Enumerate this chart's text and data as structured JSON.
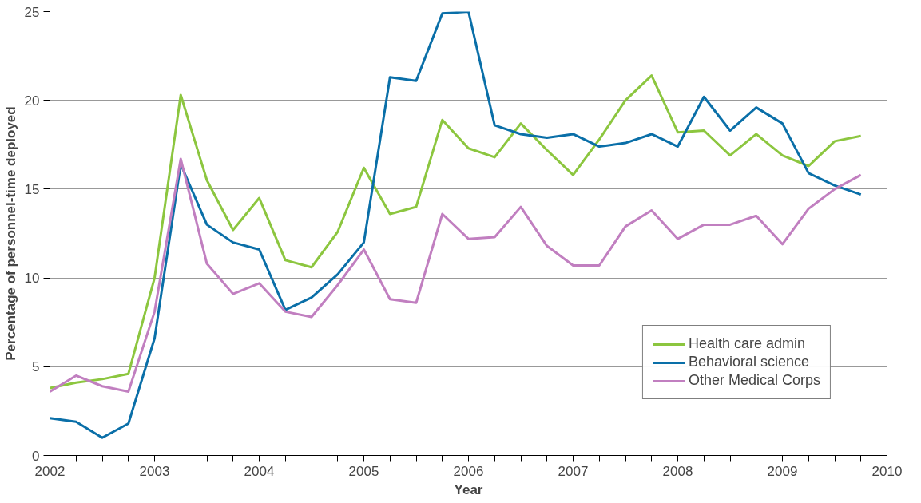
{
  "chart_data": {
    "type": "line",
    "xlabel": "Year",
    "ylabel": "Percentage of personnel-time deployed",
    "x": [
      2002,
      2002.25,
      2002.5,
      2002.75,
      2003,
      2003.25,
      2003.5,
      2003.75,
      2004,
      2004.25,
      2004.5,
      2004.75,
      2005,
      2005.25,
      2005.5,
      2005.75,
      2006,
      2006.25,
      2006.5,
      2006.75,
      2007,
      2007.25,
      2007.5,
      2007.75,
      2008,
      2008.25,
      2008.5,
      2008.75,
      2009,
      2009.25,
      2009.5,
      2009.75
    ],
    "series": [
      {
        "name": "Health care admin",
        "color": "#8cc63f",
        "values": [
          3.8,
          4.1,
          4.3,
          4.6,
          10.0,
          20.3,
          15.5,
          12.7,
          14.5,
          11.0,
          10.6,
          12.6,
          16.2,
          13.6,
          14.0,
          18.9,
          17.3,
          16.8,
          18.7,
          17.2,
          15.8,
          17.8,
          20.0,
          21.4,
          18.2,
          18.3,
          16.9,
          18.1,
          16.9,
          16.3,
          17.7,
          18.0
        ]
      },
      {
        "name": "Behavioral science",
        "color": "#0a6fa8",
        "values": [
          2.1,
          1.9,
          1.0,
          1.8,
          6.6,
          16.4,
          13.0,
          12.0,
          11.6,
          8.2,
          8.9,
          10.2,
          12.0,
          21.3,
          21.1,
          24.9,
          25.0,
          18.6,
          18.1,
          17.9,
          18.1,
          17.4,
          17.6,
          18.1,
          17.4,
          20.2,
          18.3,
          19.6,
          18.7,
          15.9,
          15.2,
          14.7
        ]
      },
      {
        "name": "Other Medical Corps",
        "color": "#c17fc0",
        "values": [
          3.6,
          4.5,
          3.9,
          3.6,
          8.1,
          16.7,
          10.8,
          9.1,
          9.7,
          8.1,
          7.8,
          9.6,
          11.6,
          8.8,
          8.6,
          13.6,
          12.2,
          12.3,
          14.0,
          11.8,
          10.7,
          10.7,
          12.9,
          13.8,
          12.2,
          13.0,
          13.0,
          13.5,
          11.9,
          13.9,
          15.0,
          15.8
        ]
      }
    ],
    "xlim": [
      2002,
      2010
    ],
    "ylim": [
      0,
      25
    ],
    "xticks": [
      2002,
      {
        "value": 2002.25,
        "label": null
      },
      {
        "value": 2002.5,
        "label": null
      },
      {
        "value": 2002.75,
        "label": null
      },
      2003,
      {
        "value": 2003.25,
        "label": null
      },
      {
        "value": 2003.5,
        "label": null
      },
      {
        "value": 2003.75,
        "label": null
      },
      2004,
      {
        "value": 2004.25,
        "label": null
      },
      {
        "value": 2004.5,
        "label": null
      },
      {
        "value": 2004.75,
        "label": null
      },
      2005,
      {
        "value": 2005.25,
        "label": null
      },
      {
        "value": 2005.5,
        "label": null
      },
      {
        "value": 2005.75,
        "label": null
      },
      2006,
      {
        "value": 2006.25,
        "label": null
      },
      {
        "value": 2006.5,
        "label": null
      },
      {
        "value": 2006.75,
        "label": null
      },
      2007,
      {
        "value": 2007.25,
        "label": null
      },
      {
        "value": 2007.5,
        "label": null
      },
      {
        "value": 2007.75,
        "label": null
      },
      2008,
      {
        "value": 2008.25,
        "label": null
      },
      {
        "value": 2008.5,
        "label": null
      },
      {
        "value": 2008.75,
        "label": null
      },
      2009,
      {
        "value": 2009.25,
        "label": null
      },
      {
        "value": 2009.5,
        "label": null
      },
      {
        "value": 2009.75,
        "label": null
      },
      2010
    ],
    "yticks": [
      0,
      5,
      10,
      15,
      20,
      25
    ],
    "grid": "y",
    "legend": "bottom right",
    "marker": "none",
    "line_style": "solid"
  }
}
